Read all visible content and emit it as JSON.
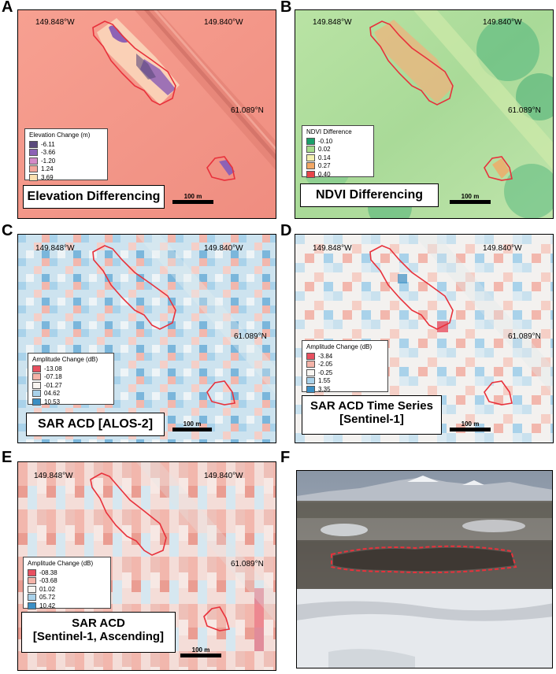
{
  "panels": [
    {
      "label": "A",
      "coords": {
        "west1": "149.848°W",
        "west2": "149.840°W",
        "north": "61.089°N"
      },
      "legend": {
        "title": "Elevation Change (m)",
        "items": [
          {
            "value": "-6.11",
            "color": "#5a4a7c"
          },
          {
            "value": "-3.66",
            "color": "#8d62b5"
          },
          {
            "value": "-1.20",
            "color": "#d48ac8"
          },
          {
            "value": "1.24",
            "color": "#f3a79c"
          },
          {
            "value": "3.69",
            "color": "#fbe0b0"
          }
        ]
      },
      "title": [
        "Elevation Differencing"
      ],
      "scale": "100 m"
    },
    {
      "label": "B",
      "coords": {
        "west1": "149.848°W",
        "west2": "149.840°W",
        "north": "61.089°N"
      },
      "legend": {
        "title": "NDVI Difference",
        "items": [
          {
            "value": "-0.10",
            "color": "#1aa06a"
          },
          {
            "value": "0.02",
            "color": "#a8dc8c"
          },
          {
            "value": "0.14",
            "color": "#f3f0b0"
          },
          {
            "value": "0.27",
            "color": "#f2a765"
          },
          {
            "value": "0.40",
            "color": "#e8454a"
          }
        ]
      },
      "title": [
        "NDVI Differencing"
      ],
      "scale": "100 m"
    },
    {
      "label": "C",
      "coords": {
        "west1": "149.848°W",
        "west2": "149.840°W",
        "north": "61.089°N"
      },
      "legend": {
        "title": "Amplitude Change (dB)",
        "items": [
          {
            "value": "-13.08",
            "color": "#e85060"
          },
          {
            "value": "-07.18",
            "color": "#f4b3a8"
          },
          {
            "value": "-01.27",
            "color": "#f8f5f1"
          },
          {
            "value": "04.62",
            "color": "#a9d2ea"
          },
          {
            "value": "10.53",
            "color": "#3b8fc4"
          }
        ]
      },
      "title": [
        "SAR ACD [ALOS-2]"
      ],
      "scale": "100 m"
    },
    {
      "label": "D",
      "coords": {
        "west1": "149.848°W",
        "west2": "149.840°W",
        "north": "61.089°N"
      },
      "legend": {
        "title": "Amplitude Change (dB)",
        "items": [
          {
            "value": "-3.84",
            "color": "#e85060"
          },
          {
            "value": "-2.05",
            "color": "#f4b3a8"
          },
          {
            "value": "-0.25",
            "color": "#f8f5f1"
          },
          {
            "value": "1.55",
            "color": "#a9d2ea"
          },
          {
            "value": "3.35",
            "color": "#3b8fc4"
          }
        ]
      },
      "title": [
        "SAR ACD Time Series",
        "[Sentinel-1]"
      ],
      "scale": "100 m"
    },
    {
      "label": "E",
      "coords": {
        "west1": "149.848°W",
        "west2": "149.840°W",
        "north": "61.089°N"
      },
      "legend": {
        "title": "Amplitude Change (dB)",
        "items": [
          {
            "value": "-08.38",
            "color": "#e85060"
          },
          {
            "value": "-03.68",
            "color": "#f4b3a8"
          },
          {
            "value": "01.02",
            "color": "#f8f5f1"
          },
          {
            "value": "05.72",
            "color": "#a9d2ea"
          },
          {
            "value": "10.42",
            "color": "#3b8fc4"
          }
        ]
      },
      "title": [
        "SAR ACD",
        "[Sentinel-1, Ascending]"
      ],
      "scale": "100 m"
    }
  ],
  "photo": {
    "label": "F"
  }
}
